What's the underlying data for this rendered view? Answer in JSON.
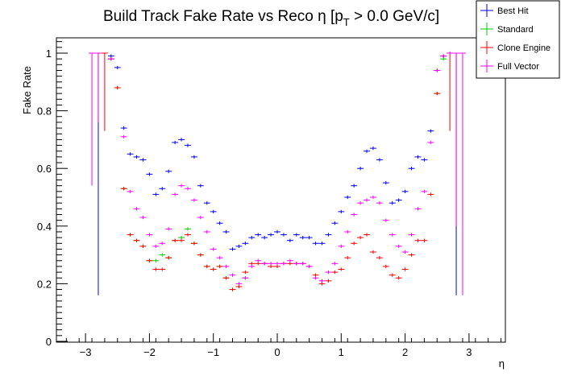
{
  "chart_data": {
    "type": "scatter",
    "title": {
      "main": "Build Track Fake Rate vs Reco η [p",
      "sub": "T",
      "rest": " > 0.0 GeV/c]"
    },
    "xlabel": "η",
    "ylabel": "Fake Rate",
    "xlim": [
      -3.5,
      3.5
    ],
    "ylim": [
      0,
      1.05
    ],
    "x_major_ticks": [
      -3,
      -2,
      -1,
      0,
      1,
      2,
      3
    ],
    "x_tick_labels": [
      "−3",
      "−2",
      "−1",
      "0",
      "1",
      "2",
      "3"
    ],
    "y_major_ticks": [
      0,
      0.2,
      0.4,
      0.6,
      0.8,
      1
    ],
    "y_tick_labels": [
      "0",
      "0.2",
      "0.4",
      "0.6",
      "0.8",
      "1"
    ],
    "grid": false,
    "legend_position": "top-right",
    "bin_half_width": 0.05,
    "series": [
      {
        "name": "Best Hit",
        "color": "#0000ff",
        "points": [
          {
            "x": -2.8,
            "y": 1.0,
            "ylo": 0.16,
            "yhi": 1.0
          },
          {
            "x": -2.6,
            "y": 0.99
          },
          {
            "x": -2.5,
            "y": 0.95
          },
          {
            "x": -2.4,
            "y": 0.74
          },
          {
            "x": -2.3,
            "y": 0.65
          },
          {
            "x": -2.2,
            "y": 0.64
          },
          {
            "x": -2.1,
            "y": 0.63
          },
          {
            "x": -2.0,
            "y": 0.58
          },
          {
            "x": -1.9,
            "y": 0.51
          },
          {
            "x": -1.8,
            "y": 0.53
          },
          {
            "x": -1.7,
            "y": 0.59
          },
          {
            "x": -1.6,
            "y": 0.69
          },
          {
            "x": -1.5,
            "y": 0.7
          },
          {
            "x": -1.4,
            "y": 0.68
          },
          {
            "x": -1.3,
            "y": 0.64
          },
          {
            "x": -1.2,
            "y": 0.54
          },
          {
            "x": -1.1,
            "y": 0.48
          },
          {
            "x": -1.0,
            "y": 0.45
          },
          {
            "x": -0.9,
            "y": 0.41
          },
          {
            "x": -0.8,
            "y": 0.38
          },
          {
            "x": -0.7,
            "y": 0.32
          },
          {
            "x": -0.6,
            "y": 0.33
          },
          {
            "x": -0.5,
            "y": 0.34
          },
          {
            "x": -0.4,
            "y": 0.36
          },
          {
            "x": -0.3,
            "y": 0.37
          },
          {
            "x": -0.2,
            "y": 0.36
          },
          {
            "x": -0.1,
            "y": 0.37
          },
          {
            "x": 0.0,
            "y": 0.38
          },
          {
            "x": 0.1,
            "y": 0.37
          },
          {
            "x": 0.2,
            "y": 0.35
          },
          {
            "x": 0.3,
            "y": 0.37
          },
          {
            "x": 0.4,
            "y": 0.36
          },
          {
            "x": 0.5,
            "y": 0.36
          },
          {
            "x": 0.6,
            "y": 0.34
          },
          {
            "x": 0.7,
            "y": 0.34
          },
          {
            "x": 0.8,
            "y": 0.37
          },
          {
            "x": 0.9,
            "y": 0.41
          },
          {
            "x": 1.0,
            "y": 0.45
          },
          {
            "x": 1.1,
            "y": 0.5
          },
          {
            "x": 1.2,
            "y": 0.54
          },
          {
            "x": 1.3,
            "y": 0.6
          },
          {
            "x": 1.4,
            "y": 0.66
          },
          {
            "x": 1.5,
            "y": 0.67
          },
          {
            "x": 1.6,
            "y": 0.63
          },
          {
            "x": 1.7,
            "y": 0.55
          },
          {
            "x": 1.8,
            "y": 0.48
          },
          {
            "x": 1.9,
            "y": 0.49
          },
          {
            "x": 2.0,
            "y": 0.52
          },
          {
            "x": 2.1,
            "y": 0.6
          },
          {
            "x": 2.2,
            "y": 0.64
          },
          {
            "x": 2.3,
            "y": 0.63
          },
          {
            "x": 2.4,
            "y": 0.73
          },
          {
            "x": 2.5,
            "y": 0.94
          },
          {
            "x": 2.6,
            "y": 0.99
          },
          {
            "x": 2.8,
            "y": 1.0,
            "ylo": 0.16,
            "yhi": 1.0
          }
        ]
      },
      {
        "name": "Standard",
        "color": "#00cc00",
        "points": [
          {
            "x": -2.6,
            "y": 0.98
          },
          {
            "x": -2.5,
            "y": 0.88
          },
          {
            "x": -2.4,
            "y": 0.53
          },
          {
            "x": -2.3,
            "y": 0.37
          },
          {
            "x": -2.2,
            "y": 0.35
          },
          {
            "x": -2.1,
            "y": 0.33
          },
          {
            "x": -2.0,
            "y": 0.28
          },
          {
            "x": -1.9,
            "y": 0.28
          },
          {
            "x": -1.8,
            "y": 0.3
          },
          {
            "x": -1.7,
            "y": 0.29
          },
          {
            "x": -1.6,
            "y": 0.35
          },
          {
            "x": -1.5,
            "y": 0.36
          },
          {
            "x": -1.4,
            "y": 0.39
          },
          {
            "x": -1.3,
            "y": 0.34
          },
          {
            "x": -1.2,
            "y": 0.3
          },
          {
            "x": -1.1,
            "y": 0.26
          },
          {
            "x": -1.0,
            "y": 0.25
          },
          {
            "x": -0.9,
            "y": 0.26
          },
          {
            "x": -0.8,
            "y": 0.22
          },
          {
            "x": -0.7,
            "y": 0.18
          },
          {
            "x": -0.6,
            "y": 0.19
          },
          {
            "x": -0.5,
            "y": 0.22
          },
          {
            "x": 2.5,
            "y": 0.86
          },
          {
            "x": 2.6,
            "y": 0.98
          }
        ]
      },
      {
        "name": "Clone Engine",
        "color": "#ff0000",
        "points": [
          {
            "x": -2.7,
            "y": 1.0,
            "ylo": 0.73,
            "yhi": 1.0
          },
          {
            "x": -2.6,
            "y": 0.98
          },
          {
            "x": -2.5,
            "y": 0.88
          },
          {
            "x": -2.4,
            "y": 0.53
          },
          {
            "x": -2.3,
            "y": 0.37
          },
          {
            "x": -2.2,
            "y": 0.35
          },
          {
            "x": -2.1,
            "y": 0.33
          },
          {
            "x": -2.0,
            "y": 0.28
          },
          {
            "x": -1.9,
            "y": 0.25
          },
          {
            "x": -1.8,
            "y": 0.25
          },
          {
            "x": -1.7,
            "y": 0.29
          },
          {
            "x": -1.6,
            "y": 0.35
          },
          {
            "x": -1.5,
            "y": 0.35
          },
          {
            "x": -1.4,
            "y": 0.37
          },
          {
            "x": -1.3,
            "y": 0.34
          },
          {
            "x": -1.2,
            "y": 0.3
          },
          {
            "x": -1.1,
            "y": 0.26
          },
          {
            "x": -1.0,
            "y": 0.25
          },
          {
            "x": -0.9,
            "y": 0.26
          },
          {
            "x": -0.8,
            "y": 0.22
          },
          {
            "x": -0.7,
            "y": 0.18
          },
          {
            "x": -0.6,
            "y": 0.19
          },
          {
            "x": -0.5,
            "y": 0.24
          },
          {
            "x": -0.4,
            "y": 0.27
          },
          {
            "x": -0.3,
            "y": 0.27
          },
          {
            "x": -0.2,
            "y": 0.27
          },
          {
            "x": -0.1,
            "y": 0.26
          },
          {
            "x": 0.0,
            "y": 0.26
          },
          {
            "x": 0.1,
            "y": 0.27
          },
          {
            "x": 0.2,
            "y": 0.27
          },
          {
            "x": 0.3,
            "y": 0.27
          },
          {
            "x": 0.4,
            "y": 0.27
          },
          {
            "x": 0.5,
            "y": 0.26
          },
          {
            "x": 0.6,
            "y": 0.23
          },
          {
            "x": 0.7,
            "y": 0.2
          },
          {
            "x": 0.8,
            "y": 0.21
          },
          {
            "x": 0.9,
            "y": 0.24
          },
          {
            "x": 1.0,
            "y": 0.25
          },
          {
            "x": 1.1,
            "y": 0.29
          },
          {
            "x": 1.2,
            "y": 0.34
          },
          {
            "x": 1.3,
            "y": 0.36
          },
          {
            "x": 1.4,
            "y": 0.37
          },
          {
            "x": 1.5,
            "y": 0.31
          },
          {
            "x": 1.6,
            "y": 0.29
          },
          {
            "x": 1.7,
            "y": 0.26
          },
          {
            "x": 1.8,
            "y": 0.23
          },
          {
            "x": 1.9,
            "y": 0.22
          },
          {
            "x": 2.0,
            "y": 0.25
          },
          {
            "x": 2.1,
            "y": 0.3
          },
          {
            "x": 2.2,
            "y": 0.35
          },
          {
            "x": 2.3,
            "y": 0.35
          },
          {
            "x": 2.4,
            "y": 0.51
          },
          {
            "x": 2.5,
            "y": 0.86
          },
          {
            "x": 2.6,
            "y": 0.99
          },
          {
            "x": 2.7,
            "y": 1.0,
            "ylo": 0.73,
            "yhi": 1.0
          }
        ]
      },
      {
        "name": "Full Vector",
        "color": "#ff00ff",
        "points": [
          {
            "x": -2.9,
            "y": 1.0,
            "ylo": 0.54,
            "yhi": 1.0
          },
          {
            "x": -2.8,
            "y": 1.0,
            "ylo": 0.76,
            "yhi": 1.0
          },
          {
            "x": -2.6,
            "y": 0.98
          },
          {
            "x": -2.4,
            "y": 0.71
          },
          {
            "x": -2.3,
            "y": 0.52
          },
          {
            "x": -2.2,
            "y": 0.46
          },
          {
            "x": -2.1,
            "y": 0.43
          },
          {
            "x": -2.0,
            "y": 0.37
          },
          {
            "x": -1.9,
            "y": 0.33
          },
          {
            "x": -1.8,
            "y": 0.34
          },
          {
            "x": -1.7,
            "y": 0.39
          },
          {
            "x": -1.6,
            "y": 0.51
          },
          {
            "x": -1.5,
            "y": 0.54
          },
          {
            "x": -1.4,
            "y": 0.53
          },
          {
            "x": -1.3,
            "y": 0.49
          },
          {
            "x": -1.2,
            "y": 0.43
          },
          {
            "x": -1.1,
            "y": 0.38
          },
          {
            "x": -1.0,
            "y": 0.32
          },
          {
            "x": -0.9,
            "y": 0.29
          },
          {
            "x": -0.8,
            "y": 0.26
          },
          {
            "x": -0.7,
            "y": 0.23
          },
          {
            "x": -0.6,
            "y": 0.2
          },
          {
            "x": -0.5,
            "y": 0.22
          },
          {
            "x": -0.4,
            "y": 0.26
          },
          {
            "x": -0.3,
            "y": 0.28
          },
          {
            "x": -0.2,
            "y": 0.27
          },
          {
            "x": -0.1,
            "y": 0.27
          },
          {
            "x": 0.0,
            "y": 0.27
          },
          {
            "x": 0.1,
            "y": 0.27
          },
          {
            "x": 0.2,
            "y": 0.28
          },
          {
            "x": 0.3,
            "y": 0.27
          },
          {
            "x": 0.4,
            "y": 0.27
          },
          {
            "x": 0.5,
            "y": 0.26
          },
          {
            "x": 0.6,
            "y": 0.22
          },
          {
            "x": 0.7,
            "y": 0.21
          },
          {
            "x": 0.8,
            "y": 0.24
          },
          {
            "x": 0.9,
            "y": 0.27
          },
          {
            "x": 1.0,
            "y": 0.33
          },
          {
            "x": 1.1,
            "y": 0.38
          },
          {
            "x": 1.2,
            "y": 0.44
          },
          {
            "x": 1.3,
            "y": 0.48
          },
          {
            "x": 1.4,
            "y": 0.49
          },
          {
            "x": 1.5,
            "y": 0.5
          },
          {
            "x": 1.6,
            "y": 0.48
          },
          {
            "x": 1.7,
            "y": 0.42
          },
          {
            "x": 1.8,
            "y": 0.37
          },
          {
            "x": 1.9,
            "y": 0.33
          },
          {
            "x": 2.0,
            "y": 0.31
          },
          {
            "x": 2.1,
            "y": 0.37
          },
          {
            "x": 2.2,
            "y": 0.46
          },
          {
            "x": 2.3,
            "y": 0.52
          },
          {
            "x": 2.4,
            "y": 0.69
          },
          {
            "x": 2.5,
            "y": 0.94
          },
          {
            "x": 2.6,
            "y": 0.99
          },
          {
            "x": 2.7,
            "y": 1.0
          },
          {
            "x": 2.8,
            "y": 1.0,
            "ylo": 0.4,
            "yhi": 1.0
          },
          {
            "x": 2.9,
            "y": 1.0,
            "ylo": 0.16,
            "yhi": 1.0
          }
        ]
      }
    ]
  }
}
